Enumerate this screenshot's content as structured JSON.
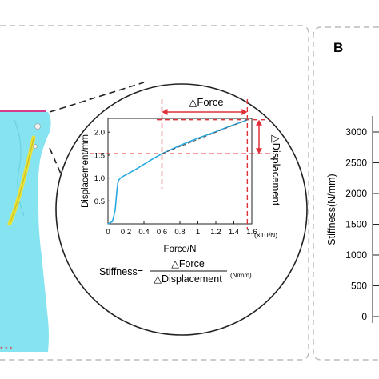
{
  "panel_b": {
    "label": "B",
    "ylabel": "Stiffness(N/mm)",
    "ticks": [
      "3000",
      "2500",
      "2000",
      "1500",
      "1000",
      "500",
      "0"
    ]
  },
  "inset": {
    "force_label": "△Force",
    "displacement_label": "△Displacement",
    "xlabel": "Force/N",
    "ylabel": "Displacement/mm",
    "x_unit": "(×10³N)",
    "formula": {
      "lhs": "Stiffness=",
      "numerator": "△Force",
      "denominator": "△Displacement",
      "unit": "(N/mm)"
    }
  },
  "colors": {
    "curve": "#29a9e1",
    "fit_line": "#555555",
    "annotation": "#e0313a",
    "dashed_frame": "#bbbbbb",
    "bone": "#7fe3f0",
    "plate": "#e8e23a"
  },
  "chart_data": {
    "type": "line",
    "xlabel": "Force/N",
    "ylabel": "Displacement/mm",
    "x_unit": "×10³ N",
    "xlim": [
      0,
      1.6
    ],
    "ylim": [
      0,
      2.3
    ],
    "x_ticks": [
      "0",
      "0.2",
      "0.4",
      "0.6",
      "0.8",
      "1",
      "1.2",
      "1.4",
      "1.6"
    ],
    "y_ticks": [
      "0.5",
      "1.0",
      "1.5",
      "2.0"
    ],
    "series": [
      {
        "x": [
          0.0,
          0.05,
          0.08,
          0.1,
          0.11,
          0.12,
          0.14,
          0.17,
          0.2,
          0.3,
          0.4,
          0.5,
          0.6,
          0.7,
          0.8,
          0.9,
          1.0,
          1.1,
          1.2,
          1.3,
          1.4,
          1.5,
          1.55
        ],
        "y": [
          0.0,
          0.05,
          0.3,
          0.75,
          0.9,
          0.96,
          1.0,
          1.04,
          1.07,
          1.18,
          1.3,
          1.42,
          1.53,
          1.62,
          1.71,
          1.79,
          1.87,
          1.94,
          2.01,
          2.09,
          2.16,
          2.23,
          2.27
        ]
      }
    ],
    "fit_line": {
      "x": [
        0.6,
        1.55
      ],
      "y": [
        1.53,
        2.27
      ]
    },
    "annotation_points": [
      {
        "x": 0.6,
        "y": 1.53
      },
      {
        "x": 1.55,
        "y": 2.27
      }
    ]
  }
}
